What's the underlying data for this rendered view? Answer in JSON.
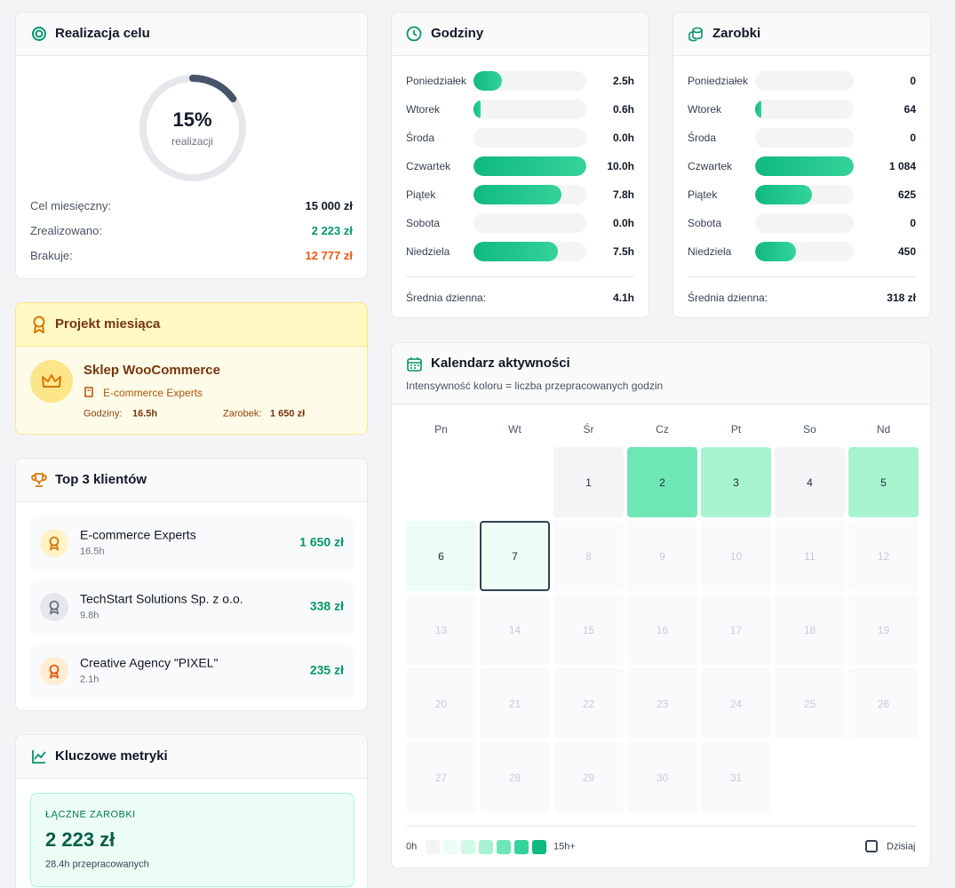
{
  "goal": {
    "title": "Realizacja celu",
    "percent": 15,
    "percent_label": "15%",
    "caption": "realizacji",
    "rows": [
      {
        "label": "Cel miesięczny:",
        "value": "15 000 zł",
        "color": "#111827"
      },
      {
        "label": "Zrealizowano:",
        "value": "2 223 zł",
        "color": "#059669"
      },
      {
        "label": "Brakuje:",
        "value": "12 777 zł",
        "color": "#ea580c"
      }
    ]
  },
  "project": {
    "title": "Projekt miesiąca",
    "name": "Sklep WooCommerce",
    "client": "E-commerce Experts",
    "hours_label": "Godziny:",
    "hours": "16.5h",
    "earnings_label": "Zarobek:",
    "earnings": "1 650 zł"
  },
  "clients": {
    "title": "Top 3 klientów",
    "items": [
      {
        "name": "E-commerce Experts",
        "hours": "16.5h",
        "amount": "1 650 zł"
      },
      {
        "name": "TechStart Solutions Sp. z o.o.",
        "hours": "9.8h",
        "amount": "338 zł"
      },
      {
        "name": "Creative Agency \"PIXEL\"",
        "hours": "2.1h",
        "amount": "235 zł"
      }
    ]
  },
  "metrics": {
    "title": "Kluczowe metryki",
    "label": "ŁĄCZNE ZAROBKI",
    "value": "2 223 zł",
    "note": "28.4h przepracowanych"
  },
  "hours": {
    "title": "Godziny",
    "days": [
      "Poniedziałek",
      "Wtorek",
      "Środa",
      "Czwartek",
      "Piątek",
      "Sobota",
      "Niedziela"
    ],
    "values": [
      2.5,
      0.6,
      0.0,
      10.0,
      7.8,
      0.0,
      7.5
    ],
    "value_labels": [
      "2.5h",
      "0.6h",
      "0.0h",
      "10.0h",
      "7.8h",
      "0.0h",
      "7.5h"
    ],
    "colors": [
      "#10b981",
      "#34d399"
    ],
    "avg_label": "Średnia dzienna:",
    "avg": "4.1h"
  },
  "earnings": {
    "title": "Zarobki",
    "days": [
      "Poniedziałek",
      "Wtorek",
      "Środa",
      "Czwartek",
      "Piątek",
      "Sobota",
      "Niedziela"
    ],
    "values": [
      0,
      64,
      0,
      1084,
      625,
      0,
      450
    ],
    "value_labels": [
      "0",
      "64",
      "0",
      "1 084",
      "625",
      "0",
      "450"
    ],
    "colors": [
      "#10b981",
      "#34d399"
    ],
    "avg_label": "Średnia dzienna:",
    "avg": "318 zł"
  },
  "calendar": {
    "title": "Kalendarz aktywności",
    "subtitle": "Intensywność koloru = liczba przepracowanych godzin",
    "weekdays": [
      "Pn",
      "Wt",
      "Śr",
      "Cz",
      "Pt",
      "So",
      "Nd"
    ],
    "cells": [
      null,
      null,
      {
        "day": 1,
        "color": "#f3f4f6"
      },
      {
        "day": 2,
        "color": "#6ee7b7"
      },
      {
        "day": 3,
        "color": "#a7f3d0"
      },
      {
        "day": 4,
        "color": "#f3f4f6"
      },
      {
        "day": 5,
        "color": "#a7f3d0"
      },
      {
        "day": 6,
        "color": "#ecfdf5"
      },
      {
        "day": 7,
        "color": "#ecfdf5",
        "today": true
      },
      {
        "day": 8,
        "color": "#f9fafb",
        "future": true
      },
      {
        "day": 9,
        "color": "#f9fafb",
        "future": true
      },
      {
        "day": 10,
        "color": "#f9fafb",
        "future": true
      },
      {
        "day": 11,
        "color": "#f9fafb",
        "future": true
      },
      {
        "day": 12,
        "color": "#f9fafb",
        "future": true
      },
      {
        "day": 13,
        "color": "#f9fafb",
        "future": true
      },
      {
        "day": 14,
        "color": "#f9fafb",
        "future": true
      },
      {
        "day": 15,
        "color": "#f9fafb",
        "future": true
      },
      {
        "day": 16,
        "color": "#f9fafb",
        "future": true
      },
      {
        "day": 17,
        "color": "#f9fafb",
        "future": true
      },
      {
        "day": 18,
        "color": "#f9fafb",
        "future": true
      },
      {
        "day": 19,
        "color": "#f9fafb",
        "future": true
      },
      {
        "day": 20,
        "color": "#f9fafb",
        "future": true
      },
      {
        "day": 21,
        "color": "#f9fafb",
        "future": true
      },
      {
        "day": 22,
        "color": "#f9fafb",
        "future": true
      },
      {
        "day": 23,
        "color": "#f9fafb",
        "future": true
      },
      {
        "day": 24,
        "color": "#f9fafb",
        "future": true
      },
      {
        "day": 25,
        "color": "#f9fafb",
        "future": true
      },
      {
        "day": 26,
        "color": "#f9fafb",
        "future": true
      },
      {
        "day": 27,
        "color": "#f9fafb",
        "future": true
      },
      {
        "day": 28,
        "color": "#f9fafb",
        "future": true
      },
      {
        "day": 29,
        "color": "#f9fafb",
        "future": true
      },
      {
        "day": 30,
        "color": "#f9fafb",
        "future": true
      },
      {
        "day": 31,
        "color": "#f9fafb",
        "future": true
      }
    ],
    "legend_min": "0h",
    "legend_max": "15h+",
    "legend_colors": [
      "#f3f4f6",
      "#ecfdf5",
      "#d1fae5",
      "#a7f3d0",
      "#6ee7b7",
      "#34d399",
      "#10b981"
    ],
    "today_label": "Dzisiaj"
  }
}
